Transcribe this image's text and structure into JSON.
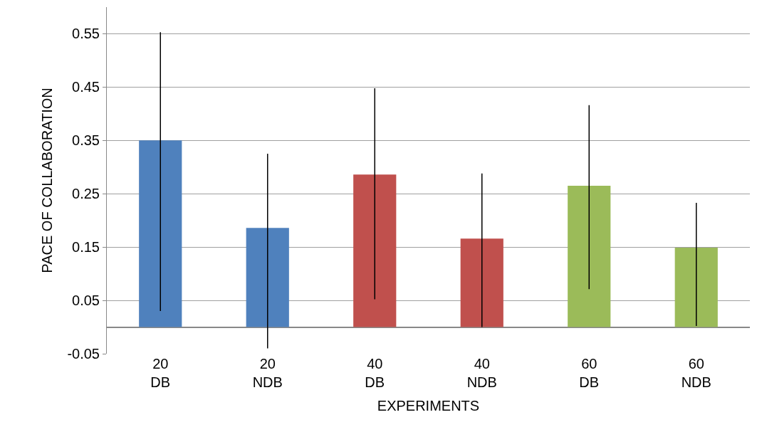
{
  "chart_data": {
    "type": "bar",
    "xlabel": "EXPERIMENTS",
    "ylabel": "PACE OF COLLABORATION",
    "categories": [
      "20\nDB",
      "20\nNDB",
      "40\nDB",
      "40\nNDB",
      "60\nDB",
      "60\nNDB"
    ],
    "values": [
      0.35,
      0.186,
      0.286,
      0.166,
      0.265,
      0.149
    ],
    "colors": [
      "#4f81bd",
      "#4f81bd",
      "#c0504d",
      "#c0504d",
      "#9bbb59",
      "#9bbb59"
    ],
    "errors": [
      [
        0.03,
        0.553
      ],
      [
        -0.04,
        0.325
      ],
      [
        0.052,
        0.448
      ],
      [
        0.0,
        0.288
      ],
      [
        0.071,
        0.416
      ],
      [
        0.002,
        0.233
      ]
    ],
    "ylim": [
      -0.05,
      0.6
    ],
    "yticks": [
      -0.05,
      0.05,
      0.15,
      0.25,
      0.35,
      0.45,
      0.55
    ],
    "grid": "y"
  }
}
